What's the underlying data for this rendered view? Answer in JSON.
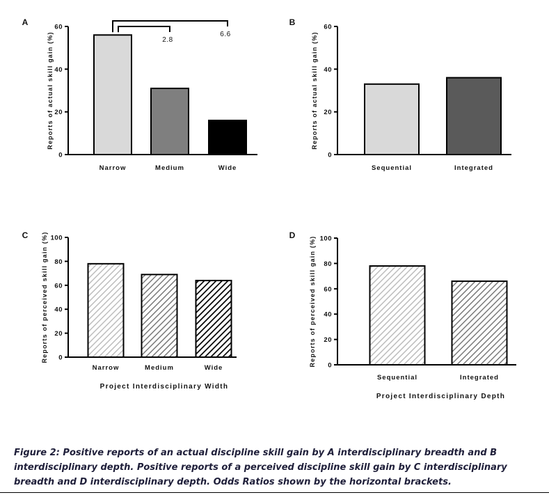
{
  "chart_data": [
    {
      "panel": "A",
      "type": "bar",
      "ylabel": "Reports of actual skill gain (%)",
      "xlabel": "",
      "categories": [
        "Narrow",
        "Medium",
        "Wide"
      ],
      "values": [
        56,
        31,
        16
      ],
      "ylim": [
        0,
        60
      ],
      "yticks": [
        0,
        20,
        40,
        60
      ],
      "colors": [
        "#d9d9d9",
        "#7f7f7f",
        "#000000"
      ],
      "pattern": [
        "solid",
        "solid",
        "solid"
      ],
      "brackets": [
        {
          "from": "Narrow",
          "to": "Medium",
          "label": "2.8"
        },
        {
          "from": "Narrow",
          "to": "Wide",
          "label": "6.6"
        }
      ]
    },
    {
      "panel": "B",
      "type": "bar",
      "ylabel": "Reports of actual skill gain (%)",
      "xlabel": "",
      "categories": [
        "Sequential",
        "Integrated"
      ],
      "values": [
        33,
        36
      ],
      "ylim": [
        0,
        60
      ],
      "yticks": [
        0,
        20,
        40,
        60
      ],
      "colors": [
        "#d9d9d9",
        "#5a5a5a"
      ],
      "pattern": [
        "solid",
        "solid"
      ]
    },
    {
      "panel": "C",
      "type": "bar",
      "ylabel": "Reports of perceived skill gain (%)",
      "xlabel": "Project Interdisciplinary Width",
      "categories": [
        "Narrow",
        "Medium",
        "Wide"
      ],
      "values": [
        78,
        69,
        64
      ],
      "ylim": [
        0,
        100
      ],
      "yticks": [
        0,
        20,
        40,
        60,
        80,
        100
      ],
      "colors": [
        "#bdbdbd",
        "#7a7a7a",
        "#000000"
      ],
      "pattern": [
        "hatch-light",
        "hatch-medium",
        "hatch-dark"
      ]
    },
    {
      "panel": "D",
      "type": "bar",
      "ylabel": "Reports of perceived skill gain (%)",
      "xlabel": "Project Interdisciplinary Depth",
      "categories": [
        "Sequential",
        "Integrated"
      ],
      "values": [
        78,
        66
      ],
      "ylim": [
        0,
        100
      ],
      "yticks": [
        0,
        20,
        40,
        60,
        80,
        100
      ],
      "colors": [
        "#bdbdbd",
        "#7a7a7a"
      ],
      "pattern": [
        "hatch-light",
        "hatch-medium"
      ]
    }
  ],
  "caption": "Figure 2: Positive reports of an actual discipline skill gain by A interdisciplinary breadth and B interdisciplinary depth. Positive reports of a perceived discipline skill gain by C interdisciplinary breadth and D interdisciplinary depth. Odds Ratios shown by the horizontal brackets."
}
